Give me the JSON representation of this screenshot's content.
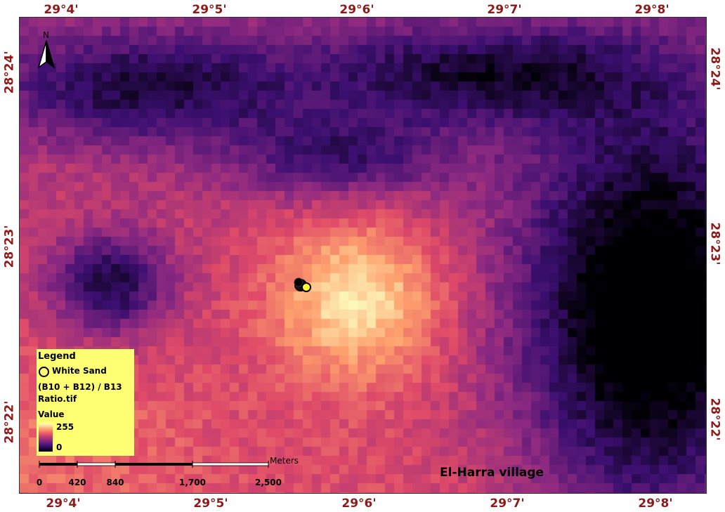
{
  "map": {
    "top_axis": [
      "29°4'",
      "29°5'",
      "29°6'",
      "29°7'",
      "29°8'"
    ],
    "bottom_axis": [
      "29°4'",
      "29°5'",
      "29°6'",
      "29°7'",
      "29°8'"
    ],
    "left_axis": [
      "28°24'",
      "28°23'",
      "28°22'"
    ],
    "right_axis": [
      "28°24'",
      "28°23'",
      "28°22'"
    ],
    "north_label": "N",
    "place_label": "El-Harra village",
    "sample_point_color": "#ffff33",
    "coord_color": "#8b1a1a"
  },
  "legend": {
    "title": "Legend",
    "point_label": "White Sand",
    "raster_name_line1": "(B10 + B12) / B13",
    "raster_name_line2": "Ratio.tif",
    "value_title": "Value",
    "high_value": "255",
    "low_value": "0",
    "background_color": "#ffff73"
  },
  "scalebar": {
    "unit": "Meters",
    "ticks": [
      "0",
      "420",
      "840",
      "1,700",
      "2,500"
    ]
  },
  "colormap": [
    "#000004",
    "#3b0f70",
    "#8c2981",
    "#de4968",
    "#fe9f6d",
    "#fcfdbf"
  ]
}
